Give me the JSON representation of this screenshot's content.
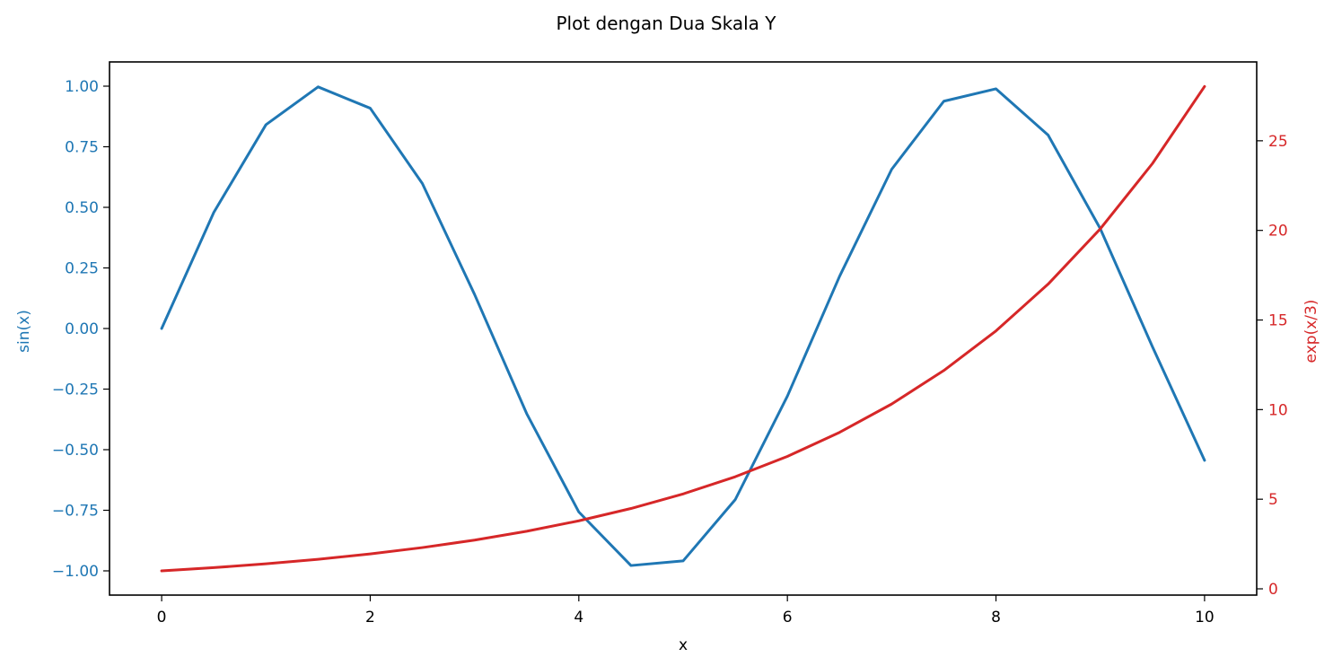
{
  "chart_data": {
    "type": "line",
    "title": "Plot dengan Dua Skala Y",
    "xlabel": "x",
    "xlim": [
      -0.5,
      10.5
    ],
    "x_ticks": [
      0,
      2,
      4,
      6,
      8,
      10
    ],
    "x_tick_labels": [
      "0",
      "2",
      "4",
      "6",
      "8",
      "10"
    ],
    "x_range": [
      0,
      10
    ],
    "grid": false,
    "left_axis": {
      "label": "sin(x)",
      "color": "#1f77b4",
      "ylim": [
        -1.1,
        1.1
      ],
      "ticks": [
        1.0,
        0.75,
        0.5,
        0.25,
        0.0,
        -0.25,
        -0.5,
        -0.75,
        -1.0
      ],
      "tick_labels": [
        "1.00",
        "0.75",
        "0.50",
        "0.25",
        "0.00",
        "−0.25",
        "−0.50",
        "−0.75",
        "−1.00"
      ]
    },
    "right_axis": {
      "label": "exp(x/3)",
      "color": "#d62728",
      "ylim": [
        -0.35,
        29.4
      ],
      "ticks": [
        25,
        20,
        15,
        10,
        5,
        0
      ],
      "tick_labels": [
        "25",
        "20",
        "15",
        "10",
        "5",
        "0"
      ]
    },
    "series": [
      {
        "axis": "left",
        "color": "#1f77b4",
        "x": [
          0,
          0.5,
          1,
          1.5,
          2,
          2.5,
          3,
          3.5,
          4,
          4.5,
          5,
          5.5,
          6,
          6.5,
          7,
          7.5,
          8,
          8.5,
          9,
          9.5,
          10
        ],
        "y": [
          0.0,
          0.479,
          0.841,
          0.997,
          0.909,
          0.598,
          0.141,
          -0.351,
          -0.757,
          -0.978,
          -0.959,
          -0.706,
          -0.279,
          0.215,
          0.657,
          0.938,
          0.989,
          0.798,
          0.412,
          -0.075,
          -0.544
        ]
      },
      {
        "axis": "right",
        "color": "#d62728",
        "x": [
          0,
          0.5,
          1,
          1.5,
          2,
          2.5,
          3,
          3.5,
          4,
          4.5,
          5,
          5.5,
          6,
          6.5,
          7,
          7.5,
          8,
          8.5,
          9,
          9.5,
          10
        ],
        "y": [
          1.0,
          1.181,
          1.396,
          1.649,
          1.948,
          2.301,
          2.718,
          3.211,
          3.794,
          4.482,
          5.294,
          6.254,
          7.389,
          8.729,
          10.312,
          12.182,
          14.392,
          17.002,
          20.086,
          23.728,
          28.032
        ]
      }
    ]
  }
}
